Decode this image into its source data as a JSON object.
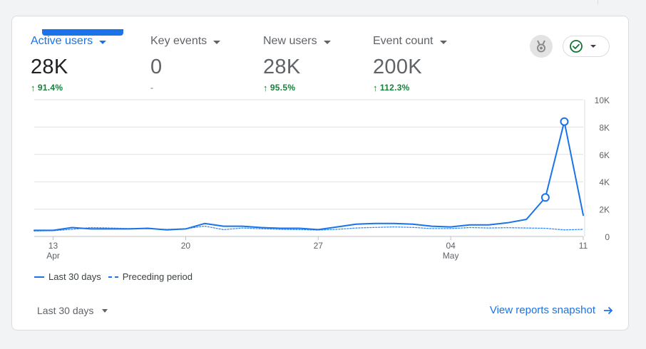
{
  "metrics": [
    {
      "name": "Active users",
      "value": "28K",
      "change": "91.4%",
      "direction": "up"
    },
    {
      "name": "Key events",
      "value": "0",
      "change": "-",
      "direction": "none"
    },
    {
      "name": "New users",
      "value": "28K",
      "change": "95.5%",
      "direction": "up"
    },
    {
      "name": "Event count",
      "value": "200K",
      "change": "112.3%",
      "direction": "up"
    }
  ],
  "controls": {
    "insights_icon": "medal-icon",
    "status_icon": "check-circle-icon"
  },
  "footer": {
    "date_range": "Last 30 days",
    "link_label": "View reports snapshot"
  },
  "colors": {
    "accent": "#1a73e8",
    "positive": "#188038",
    "grid": "#e0e0e0"
  },
  "chart_data": {
    "type": "line",
    "x_tick_labels": [
      {
        "day": 13,
        "label": "13",
        "sublabel": "Apr"
      },
      {
        "day": 20,
        "label": "20",
        "sublabel": ""
      },
      {
        "day": 27,
        "label": "27",
        "sublabel": ""
      },
      {
        "day": 34,
        "label": "04",
        "sublabel": "May"
      },
      {
        "day": 41,
        "label": "11",
        "sublabel": ""
      }
    ],
    "x_range": [
      12,
      41
    ],
    "y_ticks": [
      0,
      2000,
      4000,
      6000,
      8000,
      10000
    ],
    "y_tick_labels": [
      "0",
      "2K",
      "4K",
      "6K",
      "8K",
      "10K"
    ],
    "ylim": [
      0,
      10000
    ],
    "grid": true,
    "legend": "bottom-left",
    "series": [
      {
        "name": "Last 30 days",
        "style": "solid",
        "x": [
          12,
          13,
          14,
          15,
          16,
          17,
          18,
          19,
          20,
          21,
          22,
          23,
          24,
          25,
          26,
          27,
          28,
          29,
          30,
          31,
          32,
          33,
          34,
          35,
          36,
          37,
          38,
          39,
          40,
          41
        ],
        "values": [
          450,
          450,
          650,
          550,
          550,
          550,
          600,
          480,
          550,
          950,
          750,
          750,
          650,
          600,
          600,
          500,
          700,
          900,
          950,
          950,
          900,
          750,
          700,
          850,
          850,
          1000,
          1250,
          2850,
          8400,
          1550
        ],
        "highlight_x": [
          39,
          40
        ]
      },
      {
        "name": "Preceding period",
        "style": "dotted",
        "x": [
          12,
          13,
          14,
          15,
          16,
          17,
          18,
          19,
          20,
          21,
          22,
          23,
          24,
          25,
          26,
          27,
          28,
          29,
          30,
          31,
          32,
          33,
          34,
          35,
          36,
          37,
          38,
          39,
          40,
          41
        ],
        "values": [
          400,
          420,
          520,
          650,
          620,
          580,
          560,
          520,
          560,
          760,
          500,
          620,
          560,
          520,
          500,
          470,
          520,
          620,
          660,
          700,
          660,
          580,
          580,
          650,
          620,
          640,
          620,
          600,
          480,
          520
        ]
      }
    ]
  }
}
